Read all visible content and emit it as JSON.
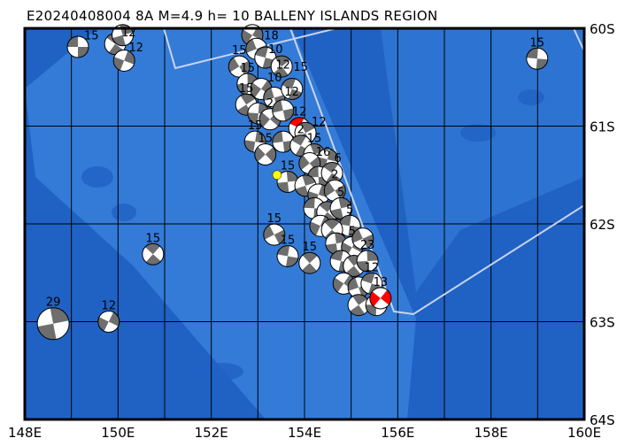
{
  "title": "E20240408004 8A M=4.9 h= 10 BALLENY ISLANDS REGION",
  "map": {
    "lon_range": [
      148,
      160
    ],
    "lat_range_south": [
      60,
      64
    ],
    "grid_step_lon": 1,
    "grid_step_lat": 1,
    "lon_ticks": [
      "148E",
      "150E",
      "152E",
      "154E",
      "156E",
      "158E",
      "160E"
    ],
    "lat_ticks": [
      "60S",
      "61S",
      "62S",
      "63S",
      "64S"
    ],
    "colors": {
      "ocean_deep": "#1f62c4",
      "ocean_shallow": "#3b84de",
      "plate_boundary": "#c8d4f0",
      "mechanism_fill": "#6e6e6e",
      "highlight": "#ff0000",
      "epicenter": "#ffff00"
    },
    "epicenter": {
      "lon": 153.41,
      "lat": 61.5
    },
    "events": [
      {
        "lon": 149.14,
        "lat": 60.19,
        "depth": "15"
      },
      {
        "lon": 149.94,
        "lat": 60.16,
        "depth": "12"
      },
      {
        "lon": 150.1,
        "lat": 60.07,
        "depth": "12"
      },
      {
        "lon": 150.13,
        "lat": 60.33,
        "depth": ""
      },
      {
        "lon": 152.6,
        "lat": 60.39,
        "depth": "15"
      },
      {
        "lon": 158.99,
        "lat": 60.31,
        "depth": "15"
      },
      {
        "lon": 150.75,
        "lat": 62.31,
        "depth": "15"
      },
      {
        "lon": 148.61,
        "lat": 63.02,
        "depth": "29",
        "big": true
      },
      {
        "lon": 149.8,
        "lat": 63.0,
        "depth": "12"
      },
      {
        "lon": 153.35,
        "lat": 62.11,
        "depth": "15"
      },
      {
        "lon": 153.64,
        "lat": 62.33,
        "depth": "15"
      },
      {
        "lon": 154.11,
        "lat": 62.4,
        "depth": "15"
      },
      {
        "lon": 153.64,
        "lat": 61.57,
        "depth": "15"
      },
      {
        "lon": 152.88,
        "lat": 60.07,
        "depth": "18"
      },
      {
        "lon": 152.97,
        "lat": 60.21,
        "depth": "10"
      },
      {
        "lon": 153.16,
        "lat": 60.3,
        "depth": "12"
      },
      {
        "lon": 153.51,
        "lat": 60.39,
        "depth": "15"
      },
      {
        "lon": 152.78,
        "lat": 60.57,
        "depth": "15"
      },
      {
        "lon": 153.07,
        "lat": 60.62,
        "depth": "10"
      },
      {
        "lon": 153.35,
        "lat": 60.71,
        "depth": "12"
      },
      {
        "lon": 153.73,
        "lat": 60.62,
        "depth": ""
      },
      {
        "lon": 152.75,
        "lat": 60.78,
        "depth": "15"
      },
      {
        "lon": 153.01,
        "lat": 60.87,
        "depth": ""
      },
      {
        "lon": 153.26,
        "lat": 60.93,
        "depth": "2"
      },
      {
        "lon": 153.54,
        "lat": 60.84,
        "depth": ""
      },
      {
        "lon": 153.89,
        "lat": 61.02,
        "depth": "12",
        "red": true
      },
      {
        "lon": 154.02,
        "lat": 61.07,
        "depth": "12"
      },
      {
        "lon": 152.94,
        "lat": 61.16,
        "depth": "15"
      },
      {
        "lon": 153.16,
        "lat": 61.29,
        "depth": "15"
      },
      {
        "lon": 153.54,
        "lat": 61.16,
        "depth": ""
      },
      {
        "lon": 153.92,
        "lat": 61.2,
        "depth": "2"
      },
      {
        "lon": 154.21,
        "lat": 61.29,
        "depth": "15"
      },
      {
        "lon": 154.49,
        "lat": 61.34,
        "depth": ""
      },
      {
        "lon": 154.11,
        "lat": 61.38,
        "depth": "16"
      },
      {
        "lon": 154.3,
        "lat": 61.52,
        "depth": ""
      },
      {
        "lon": 154.59,
        "lat": 61.48,
        "depth": "6"
      },
      {
        "lon": 154.02,
        "lat": 61.61,
        "depth": ""
      },
      {
        "lon": 154.3,
        "lat": 61.7,
        "depth": ""
      },
      {
        "lon": 154.65,
        "lat": 61.66,
        "depth": "2"
      },
      {
        "lon": 154.21,
        "lat": 61.84,
        "depth": ""
      },
      {
        "lon": 154.49,
        "lat": 61.88,
        "depth": ""
      },
      {
        "lon": 154.78,
        "lat": 61.84,
        "depth": "5"
      },
      {
        "lon": 154.34,
        "lat": 62.02,
        "depth": ""
      },
      {
        "lon": 154.65,
        "lat": 62.06,
        "depth": ""
      },
      {
        "lon": 154.97,
        "lat": 62.02,
        "depth": "5"
      },
      {
        "lon": 154.59,
        "lat": 62.06,
        "depth": ""
      },
      {
        "lon": 154.68,
        "lat": 62.2,
        "depth": ""
      },
      {
        "lon": 155.02,
        "lat": 62.24,
        "depth": "5"
      },
      {
        "lon": 155.25,
        "lat": 62.15,
        "depth": ""
      },
      {
        "lon": 154.78,
        "lat": 62.38,
        "depth": ""
      },
      {
        "lon": 155.06,
        "lat": 62.43,
        "depth": ""
      },
      {
        "lon": 155.35,
        "lat": 62.38,
        "depth": "23"
      },
      {
        "lon": 154.84,
        "lat": 62.61,
        "depth": ""
      },
      {
        "lon": 155.16,
        "lat": 62.65,
        "depth": ""
      },
      {
        "lon": 155.44,
        "lat": 62.61,
        "depth": "12"
      },
      {
        "lon": 155.16,
        "lat": 62.83,
        "depth": ""
      },
      {
        "lon": 155.54,
        "lat": 62.83,
        "depth": ""
      },
      {
        "lon": 155.63,
        "lat": 62.76,
        "depth": "13",
        "red": true
      }
    ]
  }
}
